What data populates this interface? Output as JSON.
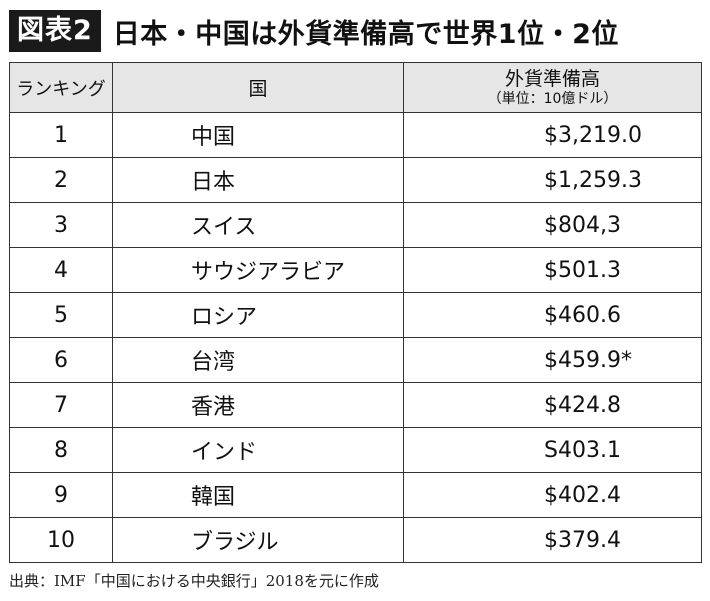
{
  "header": {
    "figure_label": "図表2",
    "title": "日本・中国は外貨準備高で世界1位・2位"
  },
  "table": {
    "columns": {
      "rank": "ランキング",
      "country": "国",
      "reserves": "外貨準備高",
      "reserves_unit": "（単位：10億ドル）"
    },
    "rows": [
      {
        "rank": "1",
        "country": "中国",
        "value": "$3,219.0"
      },
      {
        "rank": "2",
        "country": "日本",
        "value": "$1,259.3"
      },
      {
        "rank": "3",
        "country": "スイス",
        "value": "$804,3"
      },
      {
        "rank": "4",
        "country": "サウジアラビア",
        "value": "$501.3"
      },
      {
        "rank": "5",
        "country": "ロシア",
        "value": "$460.6"
      },
      {
        "rank": "6",
        "country": "台湾",
        "value": "$459.9*"
      },
      {
        "rank": "7",
        "country": "香港",
        "value": "$424.8"
      },
      {
        "rank": "8",
        "country": "インド",
        "value": "S403.1"
      },
      {
        "rank": "9",
        "country": "韓国",
        "value": "$402.4"
      },
      {
        "rank": "10",
        "country": "ブラジル",
        "value": "$379.4"
      }
    ]
  },
  "footer": {
    "source": "出典：IMF「中国における中央銀行」2018を元に作成"
  }
}
